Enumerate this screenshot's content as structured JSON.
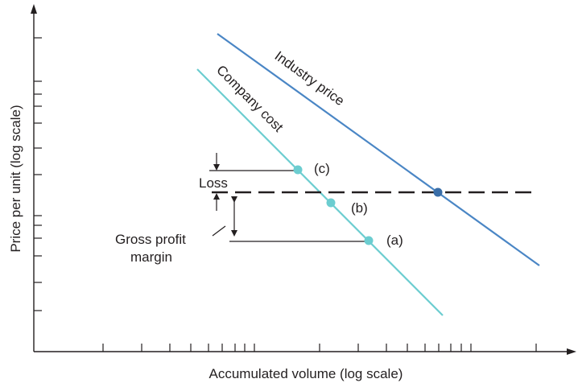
{
  "chart_data": {
    "type": "line",
    "xlabel": "Accumulated volume (log scale)",
    "ylabel": "Price per unit (log scale)",
    "x_scale": "log",
    "y_scale": "log",
    "series": [
      {
        "name": "Industry price",
        "color": "#4a86c5"
      },
      {
        "name": "Company cost",
        "color": "#6ccdd0"
      }
    ],
    "points": [
      {
        "label": "(c)"
      },
      {
        "label": "(b)"
      },
      {
        "label": "(a)"
      }
    ],
    "annotations": {
      "loss": "Loss",
      "gross_margin_line1": "Gross profit",
      "gross_margin_line2": "margin"
    }
  }
}
